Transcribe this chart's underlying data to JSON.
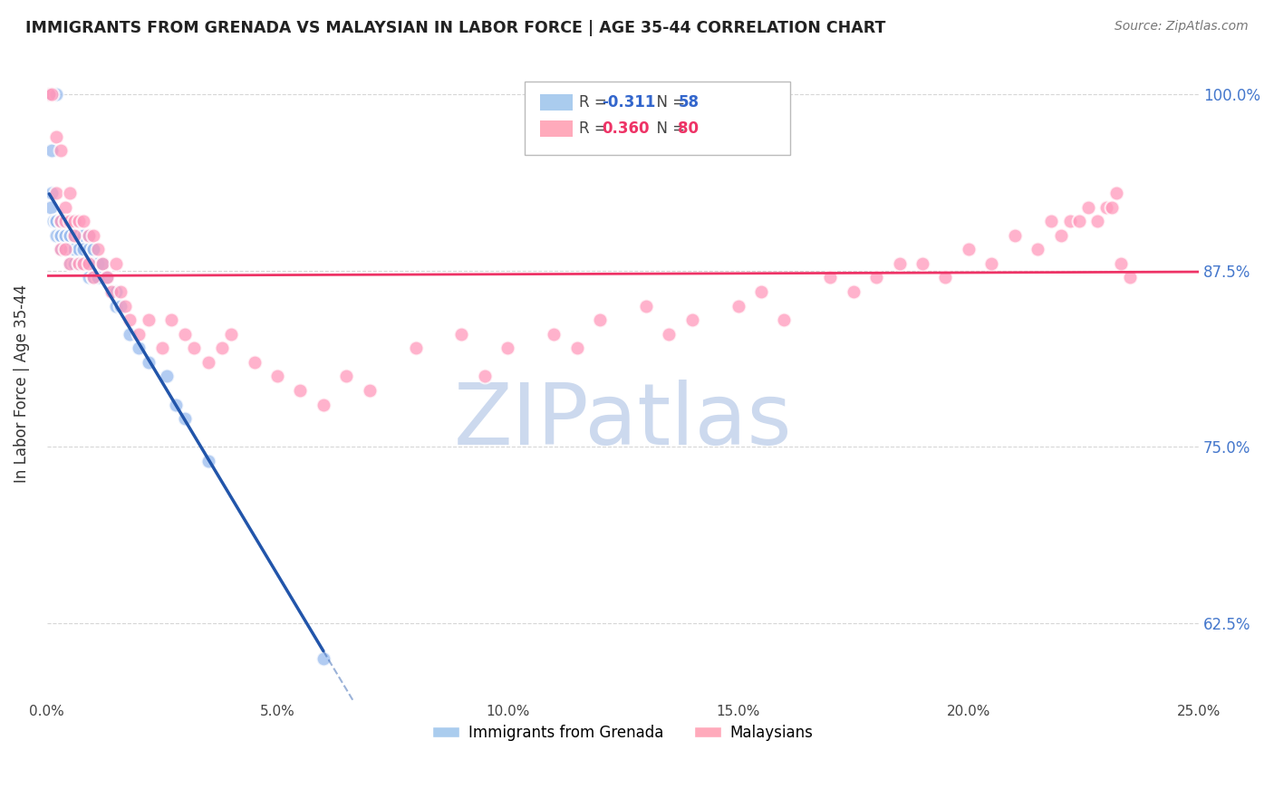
{
  "title": "IMMIGRANTS FROM GRENADA VS MALAYSIAN IN LABOR FORCE | AGE 35-44 CORRELATION CHART",
  "source": "Source: ZipAtlas.com",
  "ylabel": "In Labor Force | Age 35-44",
  "xlim": [
    0.0,
    0.25
  ],
  "ylim": [
    0.57,
    1.02
  ],
  "yticks": [
    0.625,
    0.75,
    0.875,
    1.0
  ],
  "ytick_labels": [
    "62.5%",
    "75.0%",
    "87.5%",
    "100.0%"
  ],
  "xticks": [
    0.0,
    0.05,
    0.1,
    0.15,
    0.2,
    0.25
  ],
  "xtick_labels": [
    "0.0%",
    "5.0%",
    "10.0%",
    "15.0%",
    "20.0%",
    "25.0%"
  ],
  "grenada_color": "#99bbee",
  "malaysian_color": "#ff99bb",
  "grenada_line_color": "#2255aa",
  "malaysian_line_color": "#ee3366",
  "watermark": "ZIPatlas",
  "watermark_color": "#ccd9ee",
  "background_color": "#ffffff",
  "grid_color": "#cccccc",
  "right_axis_color": "#4477cc",
  "grenada_points_x": [
    0.0005,
    0.002,
    0.001,
    0.001,
    0.0008,
    0.002,
    0.0015,
    0.002,
    0.002,
    0.002,
    0.003,
    0.003,
    0.003,
    0.003,
    0.003,
    0.004,
    0.004,
    0.004,
    0.004,
    0.004,
    0.005,
    0.005,
    0.005,
    0.005,
    0.005,
    0.006,
    0.006,
    0.006,
    0.006,
    0.007,
    0.007,
    0.007,
    0.008,
    0.008,
    0.008,
    0.009,
    0.009,
    0.009,
    0.01,
    0.01,
    0.01,
    0.01,
    0.011,
    0.011,
    0.012,
    0.013,
    0.014,
    0.015,
    0.015,
    0.016,
    0.018,
    0.02,
    0.022,
    0.026,
    0.028,
    0.03,
    0.035,
    0.06
  ],
  "grenada_points_y": [
    1.0,
    1.0,
    0.96,
    0.93,
    0.92,
    0.91,
    0.91,
    0.91,
    0.91,
    0.9,
    0.91,
    0.91,
    0.9,
    0.9,
    0.89,
    0.91,
    0.91,
    0.9,
    0.9,
    0.89,
    0.91,
    0.9,
    0.9,
    0.89,
    0.88,
    0.91,
    0.9,
    0.89,
    0.88,
    0.9,
    0.89,
    0.88,
    0.9,
    0.89,
    0.88,
    0.9,
    0.89,
    0.87,
    0.89,
    0.89,
    0.88,
    0.87,
    0.88,
    0.87,
    0.88,
    0.87,
    0.86,
    0.86,
    0.85,
    0.85,
    0.83,
    0.82,
    0.81,
    0.8,
    0.78,
    0.77,
    0.74,
    0.6
  ],
  "malaysian_points_x": [
    0.0005,
    0.001,
    0.002,
    0.002,
    0.003,
    0.003,
    0.003,
    0.004,
    0.004,
    0.004,
    0.005,
    0.005,
    0.005,
    0.006,
    0.006,
    0.007,
    0.007,
    0.008,
    0.008,
    0.009,
    0.009,
    0.01,
    0.01,
    0.011,
    0.012,
    0.013,
    0.014,
    0.015,
    0.016,
    0.017,
    0.018,
    0.02,
    0.022,
    0.025,
    0.027,
    0.03,
    0.032,
    0.035,
    0.038,
    0.04,
    0.045,
    0.05,
    0.055,
    0.06,
    0.065,
    0.07,
    0.08,
    0.09,
    0.095,
    0.1,
    0.11,
    0.115,
    0.12,
    0.13,
    0.135,
    0.14,
    0.15,
    0.155,
    0.16,
    0.17,
    0.175,
    0.18,
    0.185,
    0.19,
    0.195,
    0.2,
    0.205,
    0.21,
    0.215,
    0.218,
    0.22,
    0.222,
    0.224,
    0.226,
    0.228,
    0.23,
    0.231,
    0.232,
    0.233,
    0.235
  ],
  "malaysian_points_y": [
    1.0,
    1.0,
    0.97,
    0.93,
    0.96,
    0.91,
    0.89,
    0.92,
    0.91,
    0.89,
    0.93,
    0.91,
    0.88,
    0.91,
    0.9,
    0.91,
    0.88,
    0.91,
    0.88,
    0.9,
    0.88,
    0.9,
    0.87,
    0.89,
    0.88,
    0.87,
    0.86,
    0.88,
    0.86,
    0.85,
    0.84,
    0.83,
    0.84,
    0.82,
    0.84,
    0.83,
    0.82,
    0.81,
    0.82,
    0.83,
    0.81,
    0.8,
    0.79,
    0.78,
    0.8,
    0.79,
    0.82,
    0.83,
    0.8,
    0.82,
    0.83,
    0.82,
    0.84,
    0.85,
    0.83,
    0.84,
    0.85,
    0.86,
    0.84,
    0.87,
    0.86,
    0.87,
    0.88,
    0.88,
    0.87,
    0.89,
    0.88,
    0.9,
    0.89,
    0.91,
    0.9,
    0.91,
    0.91,
    0.92,
    0.91,
    0.92,
    0.92,
    0.93,
    0.88,
    0.87
  ]
}
